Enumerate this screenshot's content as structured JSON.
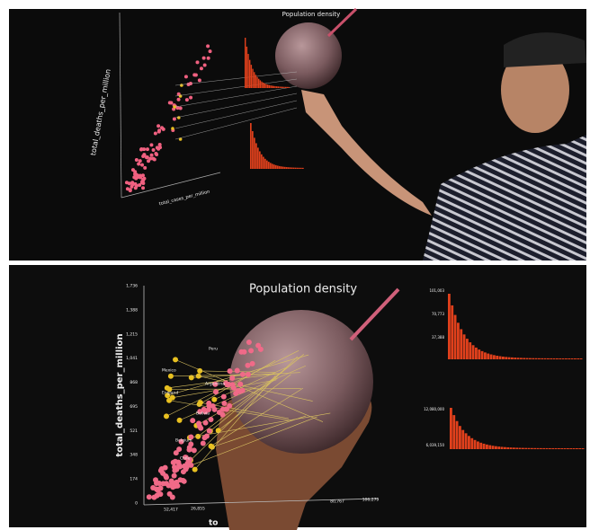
{
  "top_panel": {
    "title": "Population density",
    "y_axis": "total_deaths_per_million",
    "x_axis": "total_cases_per_million"
  },
  "bottom_panel": {
    "title": "Population density",
    "y_axis": "total_deaths_per_million",
    "x_axis_cut": "to",
    "y_ticks": [
      "1,736",
      "1,388",
      "1,215",
      "1,041",
      "868",
      "695",
      "521",
      "348",
      "174",
      "0"
    ],
    "x_ticks": [
      "52,417",
      "26,855",
      "80,767",
      "106,279"
    ],
    "country_labels": [
      "Peru",
      "Mexico",
      "England",
      "Argentina",
      "Bolivia",
      "Belgium",
      "Chile"
    ],
    "right_top_ticks": [
      "101,003",
      "70,773",
      "37,388"
    ],
    "right_bottom_ticks": [
      "12,080,000",
      "6,039,150"
    ]
  }
}
